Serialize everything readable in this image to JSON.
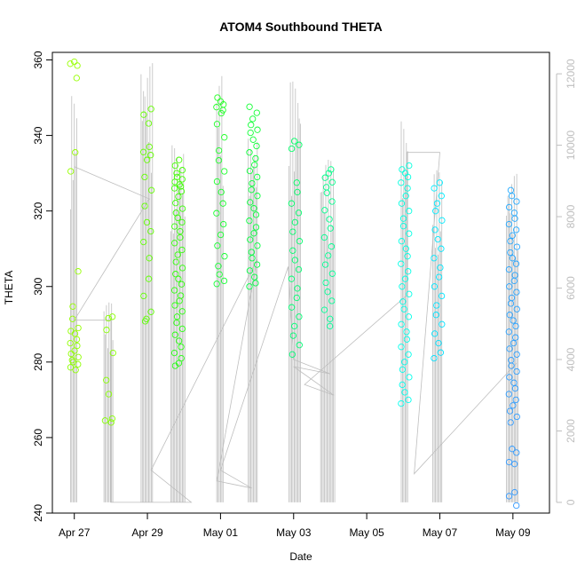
{
  "chart_data": {
    "type": "scatter",
    "title": "ATOM4 Southbound THETA",
    "xlabel": "Date",
    "ylabel": "THETA",
    "x_ticks": [
      "Apr 27",
      "Apr 29",
      "May 01",
      "May 03",
      "May 05",
      "May 07",
      "May 09"
    ],
    "x_tick_days": [
      0,
      2,
      4,
      6,
      8,
      10,
      12
    ],
    "xlim_days": [
      -0.6,
      13.0
    ],
    "ylim": [
      240,
      362
    ],
    "y_ticks": [
      240,
      260,
      280,
      300,
      320,
      340,
      360
    ],
    "y2_ticks": [
      0,
      2000,
      4000,
      6000,
      8000,
      10000,
      12000
    ],
    "y2lim": [
      -300,
      12600
    ],
    "grid": false,
    "colors": {
      "axis": "#000000",
      "right_axis": "#bebebe",
      "altitude": "#bebebe",
      "gradient_start": "#99ff00",
      "gradient_mid": "#00ff33",
      "gradient_mid2": "#00ffff",
      "gradient_end": "#3399ff"
    },
    "flights": [
      {
        "day": 0.0,
        "start_rgb": "#99ff00",
        "end_rgb": "#8cff00",
        "theta_points": [
          359.5,
          358.5,
          359.0,
          355.2,
          335.5,
          330.5,
          304.0,
          294.7,
          291.4,
          289.0,
          288.2,
          287.5,
          286.0,
          285.0,
          284.3,
          283.0,
          282.2,
          281.3,
          280.5,
          280.0,
          279.4,
          278.6,
          277.9
        ],
        "alt_max": 11400
      },
      {
        "day": 0.95,
        "start_rgb": "#88ff00",
        "end_rgb": "#85ff00",
        "theta_points": [
          292.0,
          291.6,
          288.5,
          282.4,
          275.2,
          271.5,
          265.0,
          264.5,
          264.0
        ],
        "alt_max": 5600
      },
      {
        "day": 2.0,
        "start_rgb": "#66ff00",
        "end_rgb": "#5cff00",
        "theta_points": [
          347.0,
          345.5,
          343.2,
          337.0,
          335.6,
          334.8,
          333.5,
          329.0,
          325.5,
          321.3,
          317.0,
          314.6,
          311.8,
          307.5,
          302.0,
          297.5,
          293.3,
          291.4,
          290.8
        ],
        "alt_max": 12300
      },
      {
        "day": 2.85,
        "start_rgb": "#44ff00",
        "end_rgb": "#22ff11",
        "theta_points": [
          333.5,
          332.0,
          330.8,
          330.0,
          329.0,
          328.4,
          327.7,
          327.0,
          326.5,
          326.0,
          325.2,
          323.8,
          322.1,
          320.6,
          319.5,
          318.2,
          317.0,
          315.9,
          314.6,
          313.0,
          311.5,
          309.7,
          308.4,
          306.5,
          304.9,
          303.3,
          302.0,
          300.6,
          299.0,
          297.6,
          296.2,
          295.0,
          293.4,
          292.0,
          290.4,
          288.8,
          287.2,
          285.6,
          284.0,
          282.4,
          281.0,
          279.7,
          279.0
        ],
        "alt_max": 10000
      },
      {
        "day": 4.0,
        "start_rgb": "#22ff22",
        "end_rgb": "#11ff33",
        "theta_points": [
          350.0,
          349.0,
          348.2,
          347.5,
          346.7,
          345.9,
          343.0,
          339.5,
          336.0,
          333.4,
          330.5,
          327.8,
          325.0,
          322.0,
          319.4,
          316.5,
          313.7,
          310.8,
          308.0,
          305.4,
          303.2,
          301.5,
          300.7
        ],
        "alt_max": 12000
      },
      {
        "day": 4.9,
        "start_rgb": "#11ff33",
        "end_rgb": "#00ff44",
        "theta_points": [
          347.6,
          346.0,
          344.4,
          342.8,
          341.5,
          340.7,
          338.9,
          337.2,
          335.5,
          333.9,
          332.2,
          330.6,
          329.0,
          327.3,
          325.6,
          324.0,
          322.3,
          320.7,
          319.0,
          317.4,
          315.7,
          314.1,
          312.4,
          310.8,
          309.1,
          307.5,
          305.8,
          304.2,
          302.5,
          300.9,
          300.0
        ],
        "alt_max": 10300
      },
      {
        "day": 6.05,
        "start_rgb": "#00ff66",
        "end_rgb": "#00ff77",
        "theta_points": [
          338.5,
          337.5,
          336.5,
          327.5,
          325.0,
          322.0,
          319.5,
          317.0,
          314.5,
          312.0,
          309.5,
          307.0,
          304.5,
          302.0,
          299.5,
          297.0,
          294.5,
          292.0,
          289.5,
          287.0,
          284.5,
          282.0
        ],
        "alt_max": 11800
      },
      {
        "day": 6.95,
        "start_rgb": "#00ff88",
        "end_rgb": "#00ff99",
        "theta_points": [
          331.0,
          330.0,
          328.8,
          327.6,
          326.3,
          324.8,
          322.5,
          320.2,
          317.8,
          315.4,
          313.0,
          310.6,
          308.2,
          305.8,
          303.4,
          301.0,
          298.6,
          296.2,
          293.8,
          291.4,
          289.5
        ],
        "alt_max": 9600
      },
      {
        "day": 9.05,
        "start_rgb": "#00ffdd",
        "end_rgb": "#00ffee",
        "theta_points": [
          332.0,
          331.0,
          330.0,
          329.0,
          327.5,
          326.0,
          324.0,
          322.0,
          320.0,
          318.0,
          316.0,
          314.0,
          312.0,
          310.0,
          308.0,
          306.0,
          304.0,
          302.0,
          300.0,
          298.0,
          296.0,
          294.0,
          292.0,
          290.0,
          288.0,
          286.0,
          284.0,
          282.0,
          280.0,
          278.0,
          276.0,
          274.0,
          272.0,
          270.0,
          269.0
        ],
        "alt_max": 10700
      },
      {
        "day": 9.95,
        "start_rgb": "#00eeff",
        "end_rgb": "#00e0ff",
        "theta_points": [
          327.5,
          326.0,
          324.0,
          322.0,
          320.0,
          317.5,
          315.0,
          312.5,
          310.0,
          307.5,
          305.0,
          302.5,
          300.0,
          297.5,
          295.0,
          292.5,
          290.0,
          287.5,
          285.0,
          282.5,
          281.0
        ],
        "alt_max": 9300
      },
      {
        "day": 12.0,
        "start_rgb": "#22aaff",
        "end_rgb": "#3399ff",
        "theta_points": [
          325.5,
          324.0,
          322.5,
          321.0,
          319.5,
          318.0,
          316.5,
          315.0,
          313.5,
          312.0,
          310.5,
          309.0,
          307.5,
          306.0,
          304.5,
          303.0,
          301.5,
          300.0,
          298.5,
          297.0,
          295.5,
          294.0,
          292.5,
          291.0,
          289.5,
          288.0,
          286.5,
          285.0,
          283.5,
          282.0,
          280.5,
          279.0,
          277.5,
          276.0,
          274.5,
          273.0,
          271.5,
          270.0,
          268.5,
          267.0,
          265.5,
          264.0,
          257.0,
          256.0,
          253.5,
          253.0,
          245.5,
          244.5,
          242.0
        ],
        "alt_max": 9200
      }
    ],
    "altitude_track": [
      [
        0.0,
        9400
      ],
      [
        2.05,
        8500
      ],
      [
        0.0,
        5100
      ],
      [
        1.0,
        5100
      ],
      [
        1.0,
        0
      ],
      [
        1.95,
        0
      ],
      [
        2.0,
        0
      ],
      [
        2.8,
        0
      ],
      [
        3.2,
        0
      ],
      [
        2.1,
        900
      ],
      [
        5.0,
        6800
      ],
      [
        3.9,
        600
      ],
      [
        4.85,
        400
      ],
      [
        4.0,
        900
      ],
      [
        5.85,
        6600
      ],
      [
        6.0,
        4000
      ],
      [
        7.0,
        3600
      ],
      [
        6.0,
        3800
      ],
      [
        7.1,
        3000
      ],
      [
        6.3,
        3300
      ],
      [
        9.1,
        5800
      ],
      [
        9.1,
        9800
      ],
      [
        10.0,
        9800
      ],
      [
        9.3,
        800
      ],
      [
        12.1,
        3900
      ]
    ]
  }
}
